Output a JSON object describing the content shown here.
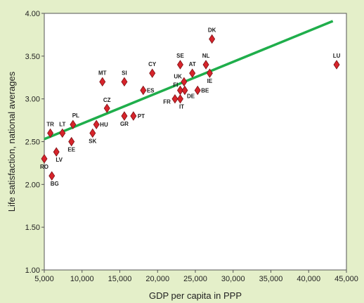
{
  "chart_data": {
    "type": "scatter",
    "title": "",
    "xlabel": "GDP per capita in PPP",
    "ylabel": "Life satisfaction, national averages",
    "xlim": [
      5000,
      45000
    ],
    "ylim": [
      1.0,
      4.0
    ],
    "x_ticks": [
      5000,
      10000,
      15000,
      20000,
      25000,
      30000,
      35000,
      40000,
      45000
    ],
    "x_tick_labels": [
      "5,000",
      "10,000",
      "15,000",
      "20,000",
      "25,000",
      "30,000",
      "35,000",
      "40,000",
      "45,000"
    ],
    "y_ticks": [
      1.0,
      1.5,
      2.0,
      2.5,
      3.0,
      3.5,
      4.0
    ],
    "y_tick_labels": [
      "1.00",
      "1.50",
      "2.00",
      "2.50",
      "3.00",
      "3.50",
      "4.00"
    ],
    "grid": false,
    "marker": "diamond",
    "colors": {
      "background": "#e4efc9",
      "plot_background": "#ffffff",
      "marker_fill": "#d7242b",
      "marker_stroke": "#7a1014",
      "trend_line": "#1fae4b"
    },
    "points": [
      {
        "label": "RO",
        "x": 5000,
        "y": 2.3
      },
      {
        "label": "BG",
        "x": 6000,
        "y": 2.1
      },
      {
        "label": "TR",
        "x": 5800,
        "y": 2.6
      },
      {
        "label": "LV",
        "x": 6600,
        "y": 2.38
      },
      {
        "label": "LT",
        "x": 7400,
        "y": 2.6
      },
      {
        "label": "EE",
        "x": 8600,
        "y": 2.5
      },
      {
        "label": "PL",
        "x": 8800,
        "y": 2.7
      },
      {
        "label": "SK",
        "x": 11400,
        "y": 2.6
      },
      {
        "label": "HU",
        "x": 11900,
        "y": 2.7
      },
      {
        "label": "MT",
        "x": 12700,
        "y": 3.2
      },
      {
        "label": "CZ",
        "x": 13300,
        "y": 2.89
      },
      {
        "label": "GR",
        "x": 15600,
        "y": 2.8
      },
      {
        "label": "SI",
        "x": 15600,
        "y": 3.2
      },
      {
        "label": "PT",
        "x": 16800,
        "y": 2.8
      },
      {
        "label": "ES",
        "x": 18100,
        "y": 3.1
      },
      {
        "label": "CY",
        "x": 19300,
        "y": 3.3
      },
      {
        "label": "FR",
        "x": 22300,
        "y": 3.0
      },
      {
        "label": "IT",
        "x": 23000,
        "y": 3.0
      },
      {
        "label": "FI",
        "x": 23000,
        "y": 3.1
      },
      {
        "label": "SE",
        "x": 23000,
        "y": 3.4
      },
      {
        "label": "UK",
        "x": 23500,
        "y": 3.2
      },
      {
        "label": "DE",
        "x": 23600,
        "y": 3.1
      },
      {
        "label": "AT",
        "x": 24600,
        "y": 3.3
      },
      {
        "label": "BE",
        "x": 25300,
        "y": 3.1
      },
      {
        "label": "NL",
        "x": 26400,
        "y": 3.4
      },
      {
        "label": "IE",
        "x": 26900,
        "y": 3.3
      },
      {
        "label": "DK",
        "x": 27200,
        "y": 3.7
      },
      {
        "label": "LU",
        "x": 43700,
        "y": 3.4
      }
    ],
    "trend_line": {
      "x1": 5000,
      "y1": 2.53,
      "x2": 43200,
      "y2": 3.91
    }
  }
}
